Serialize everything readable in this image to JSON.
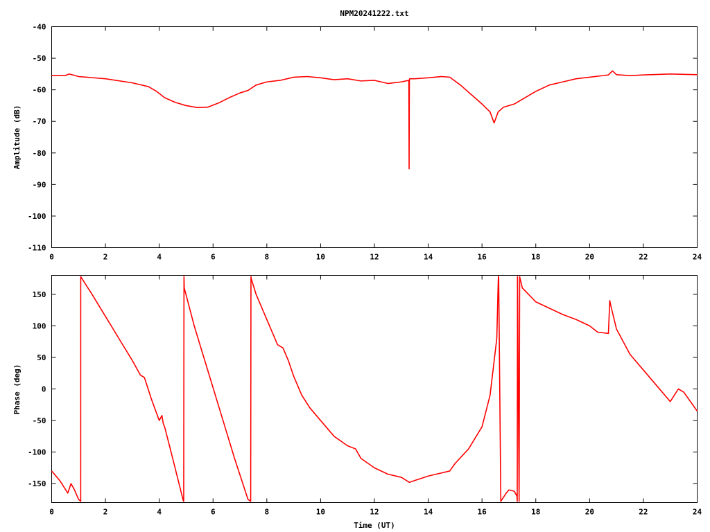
{
  "chart_data": [
    {
      "type": "line",
      "title": "NPM20241222.txt",
      "xlabel": "",
      "ylabel": "Amplitude (dB)",
      "xlim": [
        0,
        24
      ],
      "ylim": [
        -110,
        -40
      ],
      "xticks": [
        "0",
        "2",
        "4",
        "6",
        "8",
        "10",
        "12",
        "14",
        "16",
        "18",
        "20",
        "22",
        "24"
      ],
      "yticks": [
        "-40",
        "-50",
        "-60",
        "-70",
        "-80",
        "-90",
        "-100",
        "-110"
      ],
      "grid": false,
      "legend": "none",
      "color": "#ff0000",
      "series": [
        {
          "x": [
            0,
            0.5,
            0.65,
            0.8,
            1.0,
            2.0,
            3.0,
            3.6,
            3.9,
            4.2,
            4.6,
            5.0,
            5.4,
            5.8,
            6.2,
            6.6,
            7.0,
            7.3,
            7.6,
            8.0,
            8.5,
            9.0,
            9.5,
            10.0,
            10.5,
            11.0,
            11.5,
            12.0,
            12.5,
            13.0,
            13.28,
            13.29,
            13.3,
            13.31,
            13.5,
            14.0,
            14.5,
            14.8,
            15.2,
            15.6,
            16.0,
            16.3,
            16.45,
            16.6,
            16.8,
            17.2,
            17.6,
            18.0,
            18.5,
            19.0,
            19.5,
            20.0,
            20.5,
            20.7,
            20.85,
            21.0,
            21.5,
            22.0,
            23.0,
            24.0
          ],
          "y": [
            -55.5,
            -55.5,
            -55.0,
            -55.3,
            -55.8,
            -56.5,
            -57.8,
            -59.0,
            -60.5,
            -62.5,
            -64.0,
            -65.0,
            -65.6,
            -65.5,
            -64.2,
            -62.5,
            -61.0,
            -60.2,
            -58.5,
            -57.5,
            -57.0,
            -56.0,
            -55.8,
            -56.2,
            -56.8,
            -56.5,
            -57.2,
            -57.0,
            -58.0,
            -57.5,
            -57.0,
            -85.0,
            -57.0,
            -56.5,
            -56.5,
            -56.2,
            -55.8,
            -56.0,
            -58.5,
            -61.5,
            -64.5,
            -67.0,
            -70.5,
            -67.0,
            -65.5,
            -64.5,
            -62.5,
            -60.5,
            -58.5,
            -57.5,
            -56.5,
            -56.0,
            -55.5,
            -55.3,
            -54.0,
            -55.2,
            -55.5,
            -55.3,
            -55.0,
            -55.2
          ]
        }
      ]
    },
    {
      "type": "line",
      "title": "",
      "xlabel": "Time (UT)",
      "ylabel": "Phase (deg)",
      "xlim": [
        0,
        24
      ],
      "ylim": [
        -180,
        180
      ],
      "xticks": [
        "0",
        "2",
        "4",
        "6",
        "8",
        "10",
        "12",
        "14",
        "16",
        "18",
        "20",
        "22",
        "24"
      ],
      "yticks": [
        "150",
        "100",
        "50",
        "0",
        "-50",
        "-100",
        "-150"
      ],
      "grid": false,
      "legend": "none",
      "color": "#ff0000",
      "series": [
        {
          "x": [
            0,
            0.3,
            0.6,
            0.72,
            0.85,
            1.0,
            1.08,
            1.081,
            1.5,
            2.0,
            2.5,
            3.0,
            3.3,
            3.45,
            3.7,
            4.0,
            4.1,
            4.15,
            4.2,
            4.5,
            4.9,
            4.91,
            4.92,
            4.93,
            5.3,
            5.8,
            6.3,
            6.8,
            7.3,
            7.4,
            7.41,
            7.42,
            7.6,
            8.0,
            8.4,
            8.6,
            8.8,
            9.0,
            9.3,
            9.6,
            10.0,
            10.5,
            11.0,
            11.3,
            11.5,
            12.0,
            12.5,
            13.0,
            13.3,
            13.5,
            14.0,
            14.3,
            14.8,
            15.0,
            15.5,
            16.0,
            16.3,
            16.55,
            16.6,
            16.61,
            16.62,
            16.7,
            16.9,
            17.0,
            17.2,
            17.3,
            17.31,
            17.32,
            17.38,
            17.4,
            17.5,
            18.0,
            18.5,
            19.0,
            19.5,
            20.0,
            20.3,
            20.7,
            20.75,
            20.8,
            21.0,
            21.5,
            22.0,
            22.5,
            23.0,
            23.3,
            23.5,
            24.0
          ],
          "y": [
            -130,
            -145,
            -165,
            -150,
            -160,
            -175,
            -178,
            178,
            150,
            115,
            80,
            45,
            22,
            18,
            -15,
            -50,
            -42,
            -55,
            -60,
            -110,
            -178,
            -178,
            178,
            160,
            100,
            30,
            -40,
            -110,
            -175,
            -178,
            178,
            175,
            150,
            110,
            70,
            65,
            45,
            20,
            -10,
            -30,
            -50,
            -75,
            -90,
            -95,
            -110,
            -125,
            -135,
            -140,
            -148,
            -145,
            -138,
            -135,
            -130,
            -118,
            -95,
            -60,
            -10,
            80,
            165,
            178,
            178,
            -178,
            -165,
            -160,
            -162,
            -170,
            -178,
            178,
            -178,
            178,
            160,
            138,
            128,
            118,
            110,
            100,
            90,
            88,
            140,
            130,
            95,
            55,
            30,
            5,
            -20,
            0,
            -5,
            -35
          ]
        }
      ]
    }
  ]
}
